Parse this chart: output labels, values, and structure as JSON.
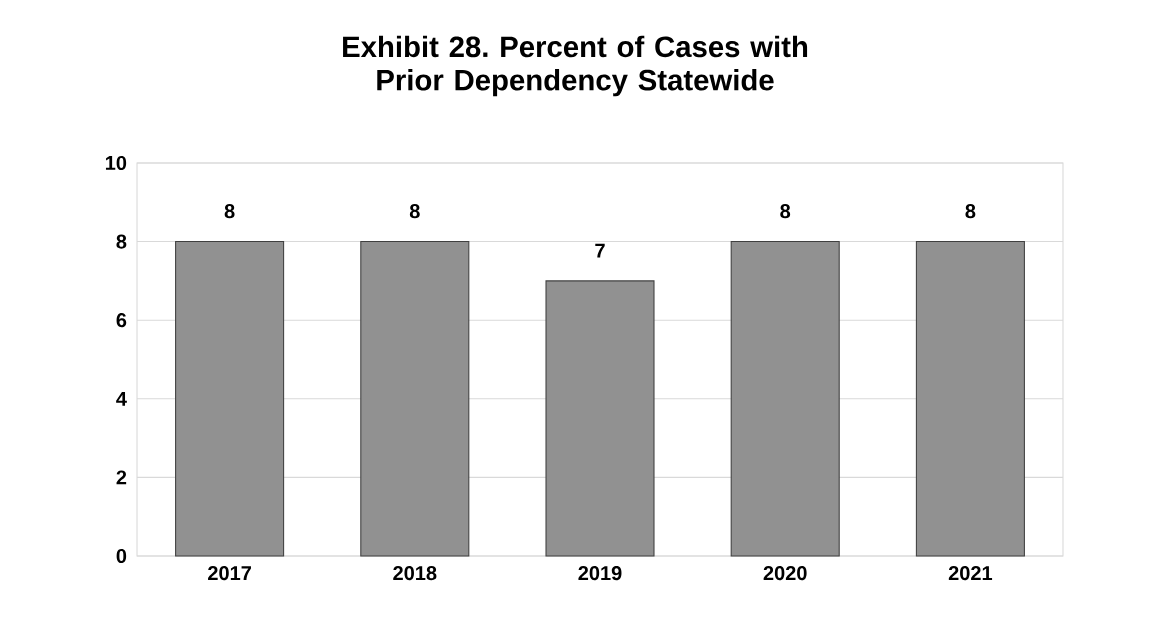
{
  "chart_data": {
    "type": "bar",
    "title": "Exhibit 28. Percent of Cases with Prior Dependency Statewide",
    "categories": [
      "2017",
      "2018",
      "2019",
      "2020",
      "2021"
    ],
    "values": [
      8,
      8,
      7,
      8,
      8
    ],
    "color": "#919191",
    "ylim": [
      0,
      10
    ],
    "yticks": [
      0,
      2,
      4,
      6,
      8,
      10
    ],
    "grid": "y",
    "data_labels": true
  }
}
